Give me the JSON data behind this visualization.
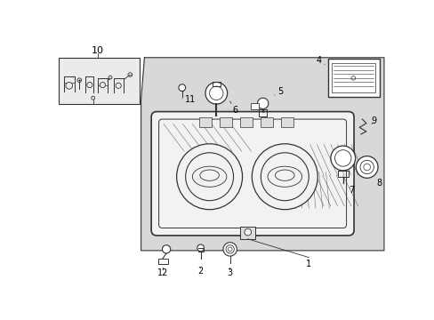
{
  "bg_color": "#ffffff",
  "shade_color": "#d8d8d8",
  "line_color": "#333333",
  "label_color": "#000000",
  "box_fill": "#e8e8e8",
  "lamp_fill": "#f2f2f2"
}
